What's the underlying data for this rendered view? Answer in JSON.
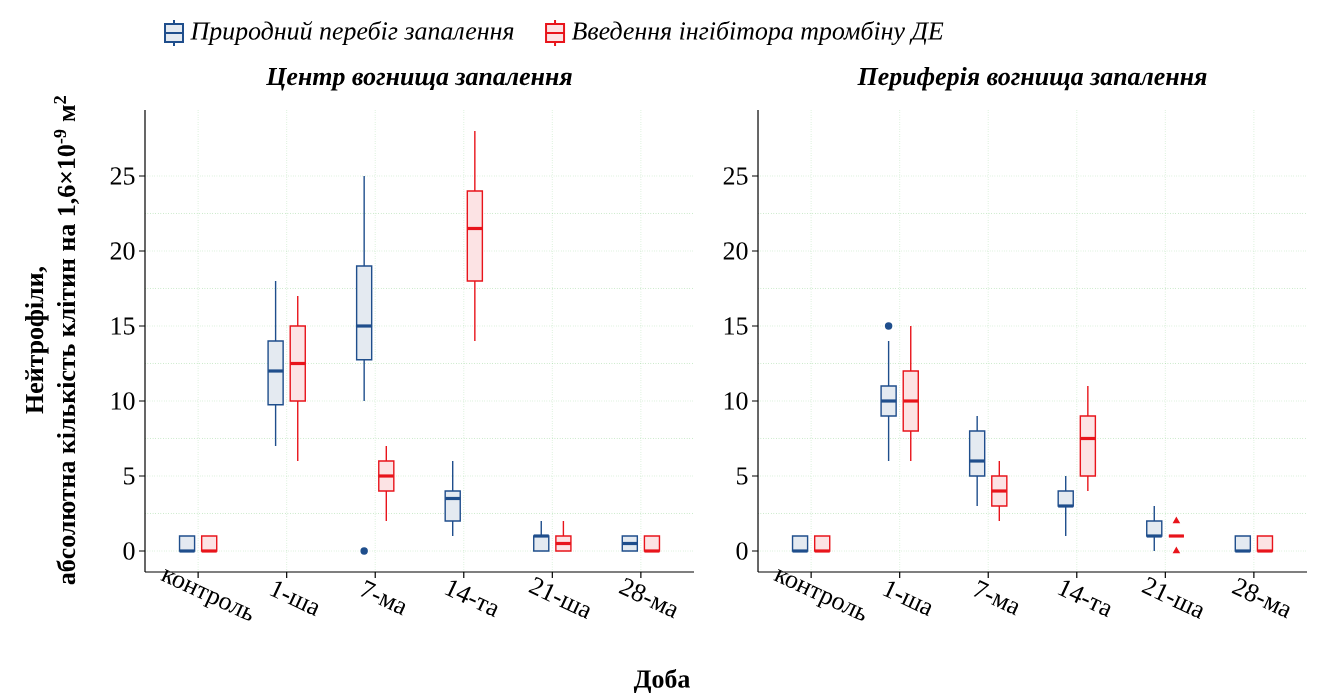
{
  "chart_data": [
    {
      "type": "box",
      "title": "Центр вогнища запалення",
      "xlabel": "Доба",
      "ylabel": "Нейтрофіли, абсолютна кількість клітин на 1,6×10$^{-9}$ м$^{2}$",
      "categories": [
        "контроль",
        "1-ша",
        "7-ма",
        "14-та",
        "21-ша",
        "28-ма"
      ],
      "ylim": [
        -1.4,
        29.4
      ],
      "yticks": [
        0,
        5,
        10,
        15,
        20,
        25
      ],
      "grid": true,
      "legend": "top",
      "series": [
        {
          "name": "Природний перебіг запалення",
          "color": "#1f4e8c",
          "marker": "circle",
          "boxes": [
            {
              "low": 0,
              "q1": 0,
              "median": 0,
              "q3": 1,
              "high": 1
            },
            {
              "low": 7,
              "q1": 9.75,
              "median": 12,
              "q3": 14,
              "high": 18
            },
            {
              "low": 10,
              "q1": 12.75,
              "median": 15,
              "q3": 19,
              "high": 25,
              "outliers": [
                0
              ]
            },
            {
              "low": 1,
              "q1": 2,
              "median": 3.5,
              "q3": 4,
              "high": 6
            },
            {
              "low": 0,
              "q1": 0,
              "median": 1,
              "q3": 1,
              "high": 2
            },
            {
              "low": 0,
              "q1": 0,
              "median": 0.5,
              "q3": 1,
              "high": 1
            }
          ]
        },
        {
          "name": "Введення інгібітора тромбіну ДЕ",
          "color": "#e8141b",
          "marker": "triangle",
          "boxes": [
            {
              "low": 0,
              "q1": 0,
              "median": 0,
              "q3": 1,
              "high": 1
            },
            {
              "low": 6,
              "q1": 10,
              "median": 12.5,
              "q3": 15,
              "high": 17
            },
            {
              "low": 2,
              "q1": 4,
              "median": 5,
              "q3": 6,
              "high": 7
            },
            {
              "low": 14,
              "q1": 18,
              "median": 21.5,
              "q3": 24,
              "high": 28
            },
            {
              "low": 0,
              "q1": 0,
              "median": 0.5,
              "q3": 1,
              "high": 2
            },
            {
              "low": 0,
              "q1": 0,
              "median": 0,
              "q3": 1,
              "high": 1
            }
          ]
        }
      ]
    },
    {
      "type": "box",
      "title": "Периферія вогнища запалення",
      "categories": [
        "контроль",
        "1-ша",
        "7-ма",
        "14-та",
        "21-ша",
        "28-ма"
      ],
      "ylim": [
        -1.4,
        29.4
      ],
      "yticks": [
        0,
        5,
        10,
        15,
        20,
        25
      ],
      "grid": true,
      "series": [
        {
          "color": "#1f4e8c",
          "marker": "circle",
          "boxes": [
            {
              "low": 0,
              "q1": 0,
              "median": 0,
              "q3": 1,
              "high": 1
            },
            {
              "low": 6,
              "q1": 9,
              "median": 10,
              "q3": 11,
              "high": 14,
              "outliers": [
                15
              ]
            },
            {
              "low": 3,
              "q1": 5,
              "median": 6,
              "q3": 8,
              "high": 9
            },
            {
              "low": 1,
              "q1": 3,
              "median": 3,
              "q3": 4,
              "high": 5
            },
            {
              "low": 0,
              "q1": 1,
              "median": 1,
              "q3": 2,
              "high": 3
            },
            {
              "low": 0,
              "q1": 0,
              "median": 0,
              "q3": 1,
              "high": 1
            }
          ]
        },
        {
          "color": "#e8141b",
          "marker": "triangle",
          "boxes": [
            {
              "low": 0,
              "q1": 0,
              "median": 0,
              "q3": 1,
              "high": 1
            },
            {
              "low": 6,
              "q1": 8,
              "median": 10,
              "q3": 12,
              "high": 15
            },
            {
              "low": 2,
              "q1": 3,
              "median": 4,
              "q3": 5,
              "high": 6
            },
            {
              "low": 4,
              "q1": 5,
              "median": 7.5,
              "q3": 9,
              "high": 11
            },
            {
              "low": 1,
              "q1": 1,
              "median": 1,
              "q3": 1,
              "high": 1,
              "outliers": [
                0,
                2
              ]
            },
            {
              "low": 0,
              "q1": 0,
              "median": 0,
              "q3": 1,
              "high": 1
            }
          ]
        }
      ]
    }
  ]
}
